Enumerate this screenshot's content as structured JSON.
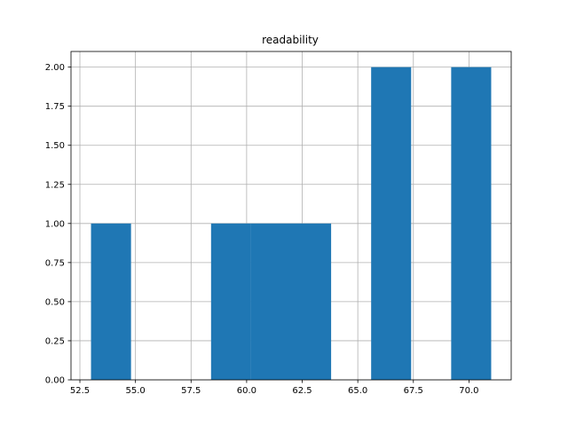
{
  "chart_data": {
    "type": "bar",
    "title": "readability",
    "xlabel": "",
    "ylabel": "",
    "xlim": [
      52.1,
      71.9
    ],
    "ylim": [
      0,
      2.1
    ],
    "grid": true,
    "bar_color": "#1f77b4",
    "bins": [
      {
        "x0": 53.0,
        "x1": 54.8,
        "value": 1
      },
      {
        "x0": 54.8,
        "x1": 56.6,
        "value": 0
      },
      {
        "x0": 56.6,
        "x1": 58.4,
        "value": 0
      },
      {
        "x0": 58.4,
        "x1": 60.2,
        "value": 1
      },
      {
        "x0": 60.2,
        "x1": 62.0,
        "value": 1
      },
      {
        "x0": 62.0,
        "x1": 63.8,
        "value": 1
      },
      {
        "x0": 63.8,
        "x1": 65.6,
        "value": 0
      },
      {
        "x0": 65.6,
        "x1": 67.4,
        "value": 2
      },
      {
        "x0": 67.4,
        "x1": 69.2,
        "value": 0
      },
      {
        "x0": 69.2,
        "x1": 71.0,
        "value": 2
      }
    ],
    "x_ticks": [
      "52.5",
      "55.0",
      "57.5",
      "60.0",
      "62.5",
      "65.0",
      "67.5",
      "70.0"
    ],
    "y_ticks": [
      "0.00",
      "0.25",
      "0.50",
      "0.75",
      "1.00",
      "1.25",
      "1.50",
      "1.75",
      "2.00"
    ]
  }
}
